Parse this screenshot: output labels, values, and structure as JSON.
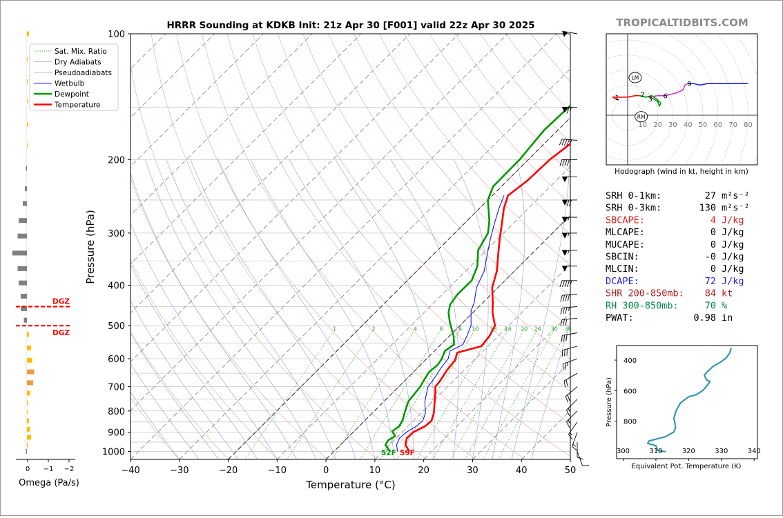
{
  "title": "HRRR Sounding at KDKB Init: 21z Apr 30 [F001] valid 22z Apr 30 2025",
  "brand": "TROPICALTIDBITS.COM",
  "colors": {
    "temperature": "#ff0000",
    "dewpoint": "#009900",
    "wetbulb": "#0000ff",
    "theta_e": "#3399aa",
    "dgz": "#ff0000",
    "omega_pos": "#ffbf00",
    "omega_mid": "#f29b3d",
    "omega_neg": "#808080",
    "hodo_0_1": "#ff0000",
    "hodo_1_3": "#009900",
    "hodo_3_6": "#cc33cc",
    "hodo_6_9": "#2222ee"
  },
  "chart_data": [
    {
      "type": "line",
      "name": "skewt",
      "xlabel": "Temperature (°C)",
      "ylabel": "Pressure (hPa)",
      "xlim": [
        -40,
        50
      ],
      "ylim": [
        1045,
        100
      ],
      "y_log": true,
      "x_ticks": [
        "−40",
        "−30",
        "−20",
        "−10",
        "0",
        "10",
        "20",
        "30",
        "40",
        "50"
      ],
      "x_tick_values": [
        -40,
        -30,
        -20,
        -10,
        0,
        10,
        20,
        30,
        40,
        50
      ],
      "y_ticks": [
        "100",
        "200",
        "300",
        "400",
        "500",
        "600",
        "700",
        "800",
        "900",
        "1000"
      ],
      "y_tick_values": [
        100,
        200,
        300,
        400,
        500,
        600,
        700,
        800,
        900,
        1000
      ],
      "legend": [
        "Sat. Mix. Ratio",
        "Dry Adiabats",
        "Pseudoadiabats",
        "Wetbulb",
        "Dewpoint",
        "Temperature"
      ],
      "legend_position": "top-left",
      "mixing_ratio_labels": [
        "1",
        "2",
        "4",
        "6",
        "8",
        "10",
        "13",
        "16",
        "20",
        "24",
        "30",
        "36"
      ],
      "mixing_ratio_values": [
        1,
        2,
        4,
        6,
        8,
        10,
        13,
        16,
        20,
        24,
        30,
        36
      ],
      "surface_dewpoint_label": "52F",
      "surface_temperature_label": "59F",
      "series": [
        {
          "name": "Temperature",
          "points": [
            [
              15.4,
              1000
            ],
            [
              13.3,
              965
            ],
            [
              12.2,
              930
            ],
            [
              12.3,
              900
            ],
            [
              13.5,
              870
            ],
            [
              13.7,
              845
            ],
            [
              12.6,
              810
            ],
            [
              10.4,
              760
            ],
            [
              8.8,
              725
            ],
            [
              7.5,
              700
            ],
            [
              7.3,
              680
            ],
            [
              6.5,
              640
            ],
            [
              6.1,
              605
            ],
            [
              5.0,
              580
            ],
            [
              8.6,
              560
            ],
            [
              8.2,
              530
            ],
            [
              7.2,
              500
            ],
            [
              4.0,
              465
            ],
            [
              2.0,
              440
            ],
            [
              -1.2,
              405
            ],
            [
              -3.6,
              370
            ],
            [
              -7.0,
              335
            ],
            [
              -9.6,
              310
            ],
            [
              -12.5,
              283
            ],
            [
              -15.0,
              262
            ],
            [
              -16.8,
              244
            ],
            [
              -15.9,
              225
            ],
            [
              -15.6,
              200
            ],
            [
              -14.4,
              180
            ],
            [
              -10.7,
              155
            ],
            [
              -2.0,
              130
            ],
            [
              2.8,
              116
            ],
            [
              3.4,
              112
            ],
            [
              4.0,
              100
            ]
          ]
        },
        {
          "name": "Dewpoint",
          "points": [
            [
              11.5,
              1000
            ],
            [
              9.2,
              965
            ],
            [
              8.8,
              940
            ],
            [
              9.4,
              920
            ],
            [
              7.8,
              895
            ],
            [
              8.2,
              870
            ],
            [
              7.6,
              840
            ],
            [
              6.6,
              810
            ],
            [
              5.0,
              760
            ],
            [
              4.4,
              700
            ],
            [
              3.6,
              665
            ],
            [
              3.2,
              645
            ],
            [
              3.5,
              620
            ],
            [
              3.1,
              600
            ],
            [
              2.1,
              575
            ],
            [
              2.7,
              555
            ],
            [
              0.9,
              530
            ],
            [
              -2.8,
              490
            ],
            [
              -5.0,
              465
            ],
            [
              -6.3,
              445
            ],
            [
              -6.9,
              420
            ],
            [
              -6.8,
              390
            ],
            [
              -8.6,
              360
            ],
            [
              -11.7,
              330
            ],
            [
              -13.2,
              300
            ],
            [
              -15.5,
              280
            ],
            [
              -20.0,
              250
            ],
            [
              -21.7,
              232
            ],
            [
              -21.8,
              200
            ],
            [
              -22.8,
              170
            ],
            [
              -22.4,
              144
            ],
            [
              -25.0,
              124
            ],
            [
              -25.2,
              110
            ],
            [
              -23.6,
              100
            ]
          ]
        },
        {
          "name": "Wetbulb",
          "points": [
            [
              13.0,
              1000
            ],
            [
              11.5,
              965
            ],
            [
              10.7,
              930
            ],
            [
              10.9,
              900
            ],
            [
              11.7,
              870
            ],
            [
              11.9,
              845
            ],
            [
              10.9,
              810
            ],
            [
              8.4,
              760
            ],
            [
              7.0,
              725
            ],
            [
              6.0,
              700
            ],
            [
              5.6,
              670
            ],
            [
              4.8,
              630
            ],
            [
              4.4,
              600
            ],
            [
              3.2,
              575
            ],
            [
              4.5,
              555
            ],
            [
              3.6,
              530
            ],
            [
              2.3,
              500
            ],
            [
              -0.8,
              460
            ],
            [
              -1.8,
              440
            ],
            [
              -4.4,
              405
            ],
            [
              -6.2,
              370
            ],
            [
              -9.2,
              335
            ],
            [
              -11.5,
              310
            ],
            [
              -14.0,
              283
            ],
            [
              -16.0,
              262
            ],
            [
              -17.6,
              244
            ]
          ]
        }
      ]
    },
    {
      "type": "line",
      "name": "hodograph",
      "caption": "Hodograph (wind in kt, height in km)",
      "ring_labels": [
        "10",
        "20",
        "30",
        "40",
        "50",
        "60",
        "70",
        "80"
      ],
      "ring_values": [
        10,
        20,
        30,
        40,
        50,
        60,
        70,
        80
      ],
      "height_labels": [
        {
          "text": "1",
          "u": -7,
          "v": 12
        },
        {
          "text": "2",
          "u": 10,
          "v": 14
        },
        {
          "text": "3",
          "u": 15,
          "v": 11
        },
        {
          "text": "6",
          "u": 25,
          "v": 13
        },
        {
          "text": "9",
          "u": 41,
          "v": 21
        }
      ],
      "storm_motion": [
        {
          "text": "LM",
          "u": 5,
          "v": 25
        },
        {
          "text": "RM",
          "u": 9,
          "v": -1
        }
      ],
      "series": [
        {
          "name": "0-1 km",
          "points": [
            [
              -6,
              10
            ],
            [
              -10,
              12
            ],
            [
              -6,
              12
            ],
            [
              0,
              12
            ],
            [
              5,
              13
            ],
            [
              8,
              13
            ]
          ]
        },
        {
          "name": "1-3 km",
          "points": [
            [
              8,
              13
            ],
            [
              12,
              12
            ],
            [
              16,
              13
            ],
            [
              19,
              11
            ],
            [
              22,
              8
            ],
            [
              21,
              6
            ],
            [
              20,
              9
            ],
            [
              17,
              11
            ],
            [
              14,
              12
            ]
          ]
        },
        {
          "name": "3-6 km",
          "points": [
            [
              14,
              12
            ],
            [
              20,
              13
            ],
            [
              25,
              13
            ],
            [
              29,
              14
            ],
            [
              33,
              15
            ],
            [
              37,
              17
            ],
            [
              38,
              20
            ],
            [
              40,
              21
            ]
          ]
        },
        {
          "name": "6-9 km",
          "points": [
            [
              40,
              21
            ],
            [
              44,
              21
            ],
            [
              48,
              20
            ],
            [
              53,
              21
            ],
            [
              59,
              21
            ],
            [
              66,
              21
            ],
            [
              74,
              21
            ],
            [
              80,
              21
            ]
          ]
        }
      ]
    },
    {
      "type": "line",
      "name": "theta_e",
      "xlabel": "Equivalent Pot. Temperature (K)",
      "ylabel": "Pressure (hPa)",
      "xlim": [
        298,
        341
      ],
      "ylim": [
        1045,
        305
      ],
      "x_ticks": [
        "300",
        "310",
        "320",
        "330",
        "340"
      ],
      "x_tick_values": [
        300,
        310,
        320,
        330,
        340
      ],
      "y_ticks": [
        "400",
        "600",
        "800"
      ],
      "y_tick_values": [
        400,
        600,
        800
      ],
      "points": [
        [
          313.0,
          1000
        ],
        [
          310.5,
          990
        ],
        [
          310.0,
          960
        ],
        [
          307.5,
          945
        ],
        [
          307.8,
          930
        ],
        [
          313.0,
          900
        ],
        [
          315.5,
          870
        ],
        [
          316.0,
          840
        ],
        [
          315.7,
          800
        ],
        [
          315.5,
          780
        ],
        [
          316.2,
          730
        ],
        [
          317.5,
          680
        ],
        [
          320.0,
          640
        ],
        [
          322.5,
          625
        ],
        [
          324.5,
          595
        ],
        [
          325.5,
          570
        ],
        [
          326.5,
          540
        ],
        [
          325.5,
          530
        ],
        [
          324.8,
          500
        ],
        [
          325.5,
          480
        ],
        [
          327.5,
          440
        ],
        [
          330.0,
          410
        ],
        [
          331.5,
          385
        ],
        [
          332.5,
          355
        ],
        [
          333.0,
          320
        ]
      ]
    },
    {
      "type": "bar",
      "name": "omega",
      "xlabel": "Omega (Pa/s)",
      "x_ticks": [
        "0",
        "−1",
        "−2"
      ],
      "x_tick_values": [
        0,
        -1,
        -2
      ],
      "dgz_label": "DGZ",
      "dgz_pressures": [
        450,
        500
      ],
      "levels": [
        100,
        115,
        130,
        145,
        165,
        185,
        210,
        235,
        255,
        280,
        305,
        335,
        365,
        395,
        425,
        455,
        485,
        525,
        565,
        605,
        645,
        685,
        725,
        765,
        805,
        845,
        885,
        925,
        965,
        1000
      ],
      "values": [
        0.1,
        0.03,
        0.02,
        0.03,
        0.05,
        0.01,
        -0.05,
        -0.1,
        -0.2,
        -0.4,
        -0.45,
        -0.7,
        -0.45,
        -0.4,
        -0.3,
        -0.3,
        -0.15,
        0.1,
        0.2,
        0.25,
        0.35,
        0.3,
        0.15,
        0.05,
        0.02,
        0.1,
        0.15,
        0.2,
        0.05,
        -0.05
      ]
    }
  ],
  "stats": [
    {
      "label": "SRH 0-1km:",
      "value": "27",
      "unit": "m²s⁻²",
      "color": "#000000"
    },
    {
      "label": "SRH 0-3km:",
      "value": "130",
      "unit": "m²s⁻²",
      "color": "#000000"
    },
    {
      "label": "SBCAPE:",
      "value": "4",
      "unit": "J/kg",
      "color": "#dd2222"
    },
    {
      "label": "MLCAPE:",
      "value": "0",
      "unit": "J/kg",
      "color": "#000000"
    },
    {
      "label": "MUCAPE:",
      "value": "0",
      "unit": "J/kg",
      "color": "#000000"
    },
    {
      "label": "SBCIN:",
      "value": "-0",
      "unit": "J/kg",
      "color": "#000000"
    },
    {
      "label": "MLCIN:",
      "value": "0",
      "unit": "J/kg",
      "color": "#000000"
    },
    {
      "label": "DCAPE:",
      "value": "72",
      "unit": "J/kg",
      "color": "#2222dd"
    },
    {
      "label": "SHR 200-850mb:",
      "value": "84",
      "unit": "kt",
      "color": "#aa2222"
    },
    {
      "label": "RH 300-850mb:",
      "value": "70",
      "unit": "%",
      "color": "#008844"
    },
    {
      "label": "PWAT:",
      "value": "0.98",
      "unit": "in",
      "color": "#000000"
    }
  ],
  "wind_barbs": [
    {
      "p": 100,
      "speed": 50,
      "dir": 280
    },
    {
      "p": 150,
      "speed": 65,
      "dir": 270
    },
    {
      "p": 180,
      "speed": 45,
      "dir": 275
    },
    {
      "p": 200,
      "speed": 40,
      "dir": 270
    },
    {
      "p": 220,
      "speed": 50,
      "dir": 270
    },
    {
      "p": 250,
      "speed": 70,
      "dir": 270
    },
    {
      "p": 275,
      "speed": 55,
      "dir": 270
    },
    {
      "p": 300,
      "speed": 55,
      "dir": 270
    },
    {
      "p": 330,
      "speed": 55,
      "dir": 270
    },
    {
      "p": 360,
      "speed": 50,
      "dir": 270
    },
    {
      "p": 390,
      "speed": 45,
      "dir": 270
    },
    {
      "p": 420,
      "speed": 40,
      "dir": 265
    },
    {
      "p": 450,
      "speed": 35,
      "dir": 265
    },
    {
      "p": 480,
      "speed": 30,
      "dir": 265
    },
    {
      "p": 520,
      "speed": 30,
      "dir": 260
    },
    {
      "p": 560,
      "speed": 30,
      "dir": 255
    },
    {
      "p": 600,
      "speed": 25,
      "dir": 250
    },
    {
      "p": 650,
      "speed": 20,
      "dir": 240
    },
    {
      "p": 700,
      "speed": 20,
      "dir": 230
    },
    {
      "p": 750,
      "speed": 15,
      "dir": 225
    },
    {
      "p": 800,
      "speed": 15,
      "dir": 225
    },
    {
      "p": 850,
      "speed": 15,
      "dir": 215
    },
    {
      "p": 900,
      "speed": 15,
      "dir": 200
    },
    {
      "p": 950,
      "speed": 10,
      "dir": 180
    },
    {
      "p": 1000,
      "speed": 10,
      "dir": 160
    }
  ]
}
